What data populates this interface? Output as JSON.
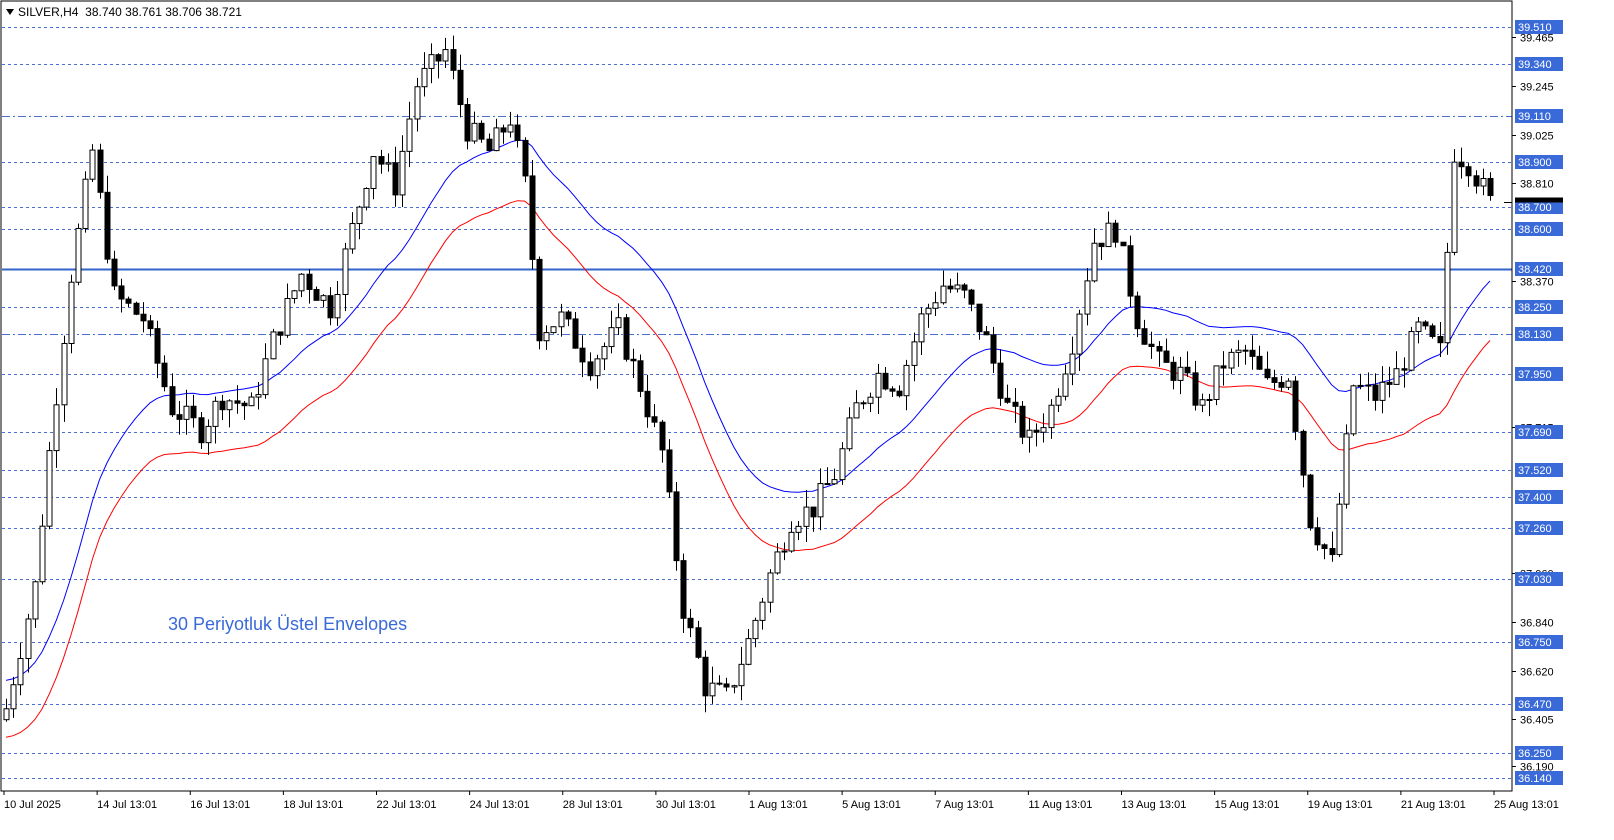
{
  "header": {
    "symbol": "SILVER,H4",
    "ohlc": "38.740 38.761 38.706 38.721"
  },
  "annotation": "30 Periyotluk Üstel Envelopes",
  "colors": {
    "candle": "#000000",
    "grid_dashed": "#4a6fd0",
    "key_level": "#3366cc",
    "upper_envelope": "#0000ff",
    "lower_envelope": "#ff0000",
    "level_label_bg": "#3a6ad8",
    "level_label_text": "#ffffff"
  },
  "chart_data": {
    "type": "candlestick",
    "title": "SILVER,H4",
    "ylim": [
      36.08,
      39.62
    ],
    "y_ticks": [
      "39.465",
      "39.245",
      "39.025",
      "38.810",
      "38.370",
      "37.715",
      "37.060",
      "36.840",
      "36.620",
      "36.405",
      "36.190"
    ],
    "x_ticks": [
      "10 Jul 2025",
      "14 Jul 13:01",
      "16 Jul 13:01",
      "18 Jul 13:01",
      "22 Jul 13:01",
      "24 Jul 13:01",
      "28 Jul 13:01",
      "30 Jul 13:01",
      "1 Aug 13:01",
      "5 Aug 13:01",
      "7 Aug 13:01",
      "11 Aug 13:01",
      "13 Aug 13:01",
      "15 Aug 13:01",
      "19 Aug 13:01",
      "21 Aug 13:01",
      "25 Aug 13:01"
    ],
    "horizontal_levels": [
      {
        "value": 39.51,
        "label": "39.510",
        "style": "dashed"
      },
      {
        "value": 39.34,
        "label": "39.340",
        "style": "dashed"
      },
      {
        "value": 39.11,
        "label": "39.110",
        "style": "dashdot"
      },
      {
        "value": 38.9,
        "label": "38.900",
        "style": "dashed"
      },
      {
        "value": 38.7,
        "label": "38.700",
        "style": "dashed"
      },
      {
        "value": 38.6,
        "label": "38.600",
        "style": "dashed"
      },
      {
        "value": 38.42,
        "label": "38.420",
        "style": "solid"
      },
      {
        "value": 38.25,
        "label": "38.250",
        "style": "dashed"
      },
      {
        "value": 38.13,
        "label": "38.130",
        "style": "dashdot"
      },
      {
        "value": 37.95,
        "label": "37.950",
        "style": "dashed"
      },
      {
        "value": 37.69,
        "label": "37.690",
        "style": "dashed"
      },
      {
        "value": 37.52,
        "label": "37.520",
        "style": "dashed"
      },
      {
        "value": 37.4,
        "label": "37.400",
        "style": "dashed"
      },
      {
        "value": 37.26,
        "label": "37.260",
        "style": "dashed"
      },
      {
        "value": 37.03,
        "label": "37.030",
        "style": "dashed"
      },
      {
        "value": 36.75,
        "label": "36.750",
        "style": "dashed"
      },
      {
        "value": 36.47,
        "label": "36.470",
        "style": "dashed"
      },
      {
        "value": 36.25,
        "label": "36.250",
        "style": "dashed"
      },
      {
        "value": 36.14,
        "label": "36.140",
        "style": "dashed"
      }
    ],
    "current_price": 38.721,
    "keypoints": [
      [
        0,
        36.45
      ],
      [
        4,
        37.0
      ],
      [
        6,
        37.6
      ],
      [
        9,
        38.4
      ],
      [
        12,
        38.95
      ],
      [
        15,
        38.3
      ],
      [
        19,
        38.2
      ],
      [
        23,
        37.8
      ],
      [
        27,
        37.7
      ],
      [
        30,
        37.85
      ],
      [
        34,
        37.8
      ],
      [
        37,
        38.1
      ],
      [
        41,
        38.4
      ],
      [
        45,
        38.25
      ],
      [
        48,
        38.6
      ],
      [
        51,
        38.95
      ],
      [
        54,
        38.8
      ],
      [
        57,
        39.25
      ],
      [
        61,
        39.4
      ],
      [
        64,
        39.05
      ],
      [
        67,
        38.95
      ],
      [
        70,
        39.1
      ],
      [
        72,
        38.8
      ],
      [
        74,
        38.15
      ],
      [
        77,
        38.2
      ],
      [
        81,
        38.0
      ],
      [
        85,
        38.15
      ],
      [
        88,
        37.9
      ],
      [
        91,
        37.6
      ],
      [
        94,
        36.9
      ],
      [
        97,
        36.55
      ],
      [
        100,
        36.5
      ],
      [
        103,
        36.75
      ],
      [
        106,
        37.05
      ],
      [
        109,
        37.3
      ],
      [
        112,
        37.35
      ],
      [
        115,
        37.5
      ],
      [
        118,
        37.8
      ],
      [
        121,
        37.95
      ],
      [
        124,
        37.9
      ],
      [
        127,
        38.2
      ],
      [
        130,
        38.35
      ],
      [
        133,
        38.3
      ],
      [
        136,
        38.1
      ],
      [
        139,
        37.8
      ],
      [
        142,
        37.65
      ],
      [
        145,
        37.8
      ],
      [
        148,
        38.1
      ],
      [
        151,
        38.55
      ],
      [
        154,
        38.6
      ],
      [
        157,
        38.2
      ],
      [
        160,
        38.0
      ],
      [
        163,
        37.95
      ],
      [
        166,
        37.8
      ],
      [
        169,
        38.0
      ],
      [
        172,
        38.05
      ],
      [
        175,
        37.9
      ],
      [
        178,
        37.95
      ],
      [
        181,
        37.3
      ],
      [
        184,
        37.1
      ],
      [
        187,
        37.9
      ],
      [
        190,
        37.85
      ],
      [
        193,
        37.95
      ],
      [
        196,
        38.15
      ],
      [
        199,
        38.05
      ],
      [
        201,
        38.95
      ],
      [
        203,
        38.9
      ],
      [
        206,
        38.72
      ]
    ]
  }
}
